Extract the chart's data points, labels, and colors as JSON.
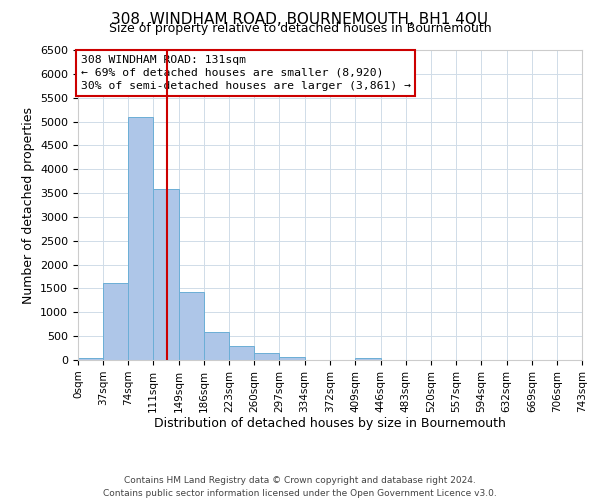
{
  "title": "308, WINDHAM ROAD, BOURNEMOUTH, BH1 4QU",
  "subtitle": "Size of property relative to detached houses in Bournemouth",
  "xlabel": "Distribution of detached houses by size in Bournemouth",
  "ylabel": "Number of detached properties",
  "footer_line1": "Contains HM Land Registry data © Crown copyright and database right 2024.",
  "footer_line2": "Contains public sector information licensed under the Open Government Licence v3.0.",
  "bin_edges": [
    0,
    37,
    74,
    111,
    149,
    186,
    223,
    260,
    297,
    334,
    372,
    409,
    446,
    483,
    520,
    557,
    594,
    632,
    669,
    706,
    743
  ],
  "bin_labels": [
    "0sqm",
    "37sqm",
    "74sqm",
    "111sqm",
    "149sqm",
    "186sqm",
    "223sqm",
    "260sqm",
    "297sqm",
    "334sqm",
    "372sqm",
    "409sqm",
    "446sqm",
    "483sqm",
    "520sqm",
    "557sqm",
    "594sqm",
    "632sqm",
    "669sqm",
    "706sqm",
    "743sqm"
  ],
  "counts": [
    50,
    1625,
    5100,
    3580,
    1420,
    580,
    290,
    145,
    60,
    0,
    0,
    50,
    0,
    0,
    0,
    0,
    0,
    0,
    0,
    0
  ],
  "bar_color": "#aec6e8",
  "bar_edge_color": "#6baed6",
  "vline_x": 131,
  "vline_color": "#cc0000",
  "ylim": [
    0,
    6500
  ],
  "yticks": [
    0,
    500,
    1000,
    1500,
    2000,
    2500,
    3000,
    3500,
    4000,
    4500,
    5000,
    5500,
    6000,
    6500
  ],
  "annotation_line1": "308 WINDHAM ROAD: 131sqm",
  "annotation_line2": "← 69% of detached houses are smaller (8,920)",
  "annotation_line3": "30% of semi-detached houses are larger (3,861) →",
  "bg_color": "#ffffff",
  "grid_color": "#d0dce8"
}
